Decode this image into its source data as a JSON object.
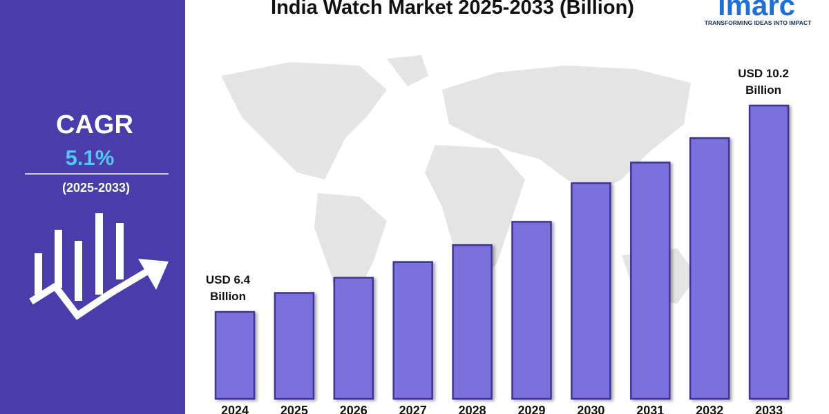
{
  "cagr": {
    "label": "CAGR",
    "value": "5.1%",
    "period": "(2025-2033)"
  },
  "logo": {
    "name": "imarc",
    "tagline": "TRANSFORMING IDEAS INTO IMPACT"
  },
  "chart_data": {
    "type": "bar",
    "title": "India Watch Market 2025-2033 (Billion)",
    "categories": [
      "2024",
      "2025",
      "2026",
      "2027",
      "2028",
      "2029",
      "2030",
      "2031",
      "2032",
      "2033"
    ],
    "values": [
      6.4,
      6.75,
      7.03,
      7.32,
      7.63,
      8.06,
      8.77,
      9.15,
      9.6,
      10.2
    ],
    "value_labels": [
      "USD 6.4 Billion",
      null,
      null,
      null,
      null,
      null,
      null,
      null,
      null,
      "USD 10.2 Billion"
    ],
    "color": "#7c70dc",
    "ylim": [
      4.8,
      11
    ]
  }
}
